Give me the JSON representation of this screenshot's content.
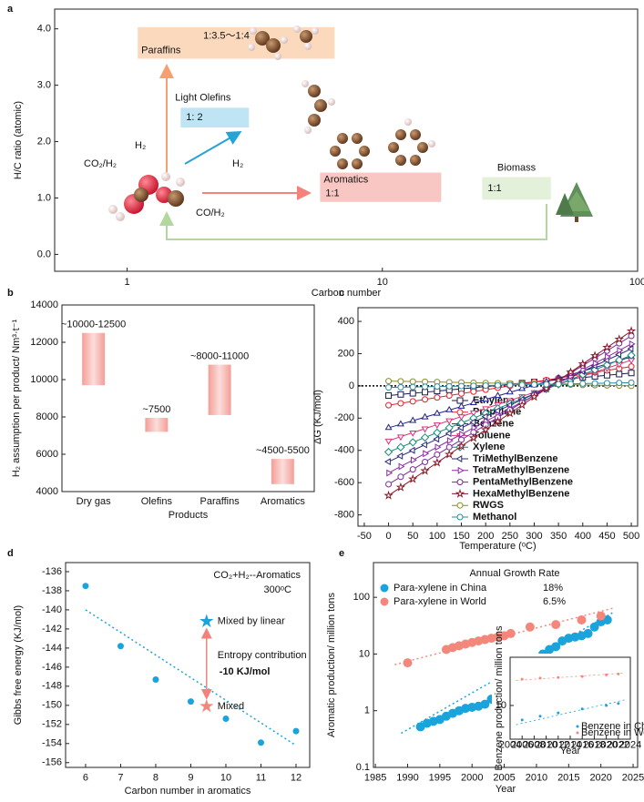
{
  "chart_data": [
    {
      "panel": "a",
      "type": "region",
      "xlabel": "Carbon number",
      "ylabel": "H/C ratio (atomic)",
      "xscale": "log",
      "xlim": [
        0.52,
        100
      ],
      "xticks": [
        1,
        10,
        100
      ],
      "ylim": [
        -0.3,
        4.35
      ],
      "yticks": [
        {
          "value": 0,
          "label": "0.0"
        },
        {
          "value": 1,
          "label": "1.0"
        },
        {
          "value": 2,
          "label": "2.0"
        },
        {
          "value": 3,
          "label": "3.0"
        },
        {
          "value": 4,
          "label": "4.0"
        }
      ],
      "regions": [
        {
          "name": "Paraffins",
          "ratio": "1:3.5～1:4",
          "x": [
            1.1,
            6.5
          ],
          "y": [
            3.47,
            4.03
          ],
          "color": "#fbd9bd",
          "text_color": "#f09a5e"
        },
        {
          "name": "Light Olefins",
          "ratio": "1: 2",
          "x": [
            1.62,
            3.0
          ],
          "y": [
            2.25,
            2.6
          ],
          "color": "#bfe5f5",
          "text_color": "#27a3d6"
        },
        {
          "name": "Aromatics",
          "ratio": "1:1",
          "x": [
            5.7,
            17
          ],
          "y": [
            0.93,
            1.45
          ],
          "color": "#f9c7c3",
          "text_color": "#f07f78"
        },
        {
          "name": "Biomass",
          "ratio": "1:1",
          "x": [
            24.6,
            45.7
          ],
          "y": [
            0.97,
            1.37
          ],
          "color": "#e3f0da",
          "text_color": "#b3d79f"
        }
      ],
      "annotations": [
        "CO₂/H₂",
        "H₂",
        "H₂",
        "CO/H₂"
      ]
    },
    {
      "panel": "b",
      "type": "floating-bar",
      "xlabel": "Products",
      "ylabel": "H₂ assumption per product/ Nm³·t⁻¹",
      "categories": [
        "Dry gas",
        "Olefins",
        "Paraffins",
        "Aromatics"
      ],
      "values": [
        [
          9700,
          12500
        ],
        [
          7200,
          7950
        ],
        [
          8100,
          10800
        ],
        [
          4400,
          5750
        ]
      ],
      "value_labels": [
        "~10000-12500",
        "~7500",
        "~8000-11000",
        "~4500-5500"
      ],
      "color": "#f49e97",
      "ylim": [
        4000,
        14000
      ],
      "yticks": [
        4000,
        6000,
        8000,
        10000,
        12000,
        14000
      ]
    },
    {
      "panel": "c",
      "type": "line",
      "xlabel": "Temperature (ᵒC)",
      "ylabel": "ΔG (KJ/mol)",
      "xlim": [
        -63,
        513
      ],
      "xticks": [
        -50,
        0,
        50,
        100,
        150,
        200,
        250,
        300,
        350,
        400,
        450,
        500
      ],
      "ylim": [
        -870,
        485
      ],
      "yticks": [
        -800,
        -600,
        -400,
        -200,
        0,
        200,
        400
      ],
      "hline": 0,
      "x": [
        0,
        25,
        50,
        75,
        100,
        125,
        150,
        175,
        200,
        225,
        250,
        275,
        300,
        325,
        350,
        375,
        400,
        425,
        450,
        475,
        500
      ],
      "series": [
        {
          "name": "Ethylene",
          "color": "#1b1b4d",
          "marker": "square",
          "values": [
            -60,
            -53,
            -46,
            -39,
            -32,
            -25,
            -18,
            -11,
            -4,
            3,
            10,
            17,
            24,
            31,
            38,
            45,
            52,
            59,
            66,
            73,
            80
          ]
        },
        {
          "name": "Propylene",
          "color": "#e8202a",
          "marker": "circle",
          "values": [
            -120,
            -108,
            -96,
            -84,
            -72,
            -60,
            -48,
            -36,
            -24,
            -12,
            0,
            12,
            24,
            36,
            48,
            60,
            72,
            84,
            96,
            108,
            120
          ]
        },
        {
          "name": "Benzene",
          "color": "#20208f",
          "marker": "triangle-up",
          "values": [
            -260,
            -238,
            -216,
            -194,
            -172,
            -150,
            -128,
            -106,
            -84,
            -62,
            -40,
            -18,
            4,
            26,
            48,
            70,
            92,
            114,
            136,
            158,
            180
          ]
        },
        {
          "name": "Toluene",
          "color": "#e0307a",
          "marker": "triangle-down",
          "values": [
            -340,
            -315,
            -290,
            -265,
            -240,
            -215,
            -190,
            -165,
            -140,
            -115,
            -90,
            -65,
            -40,
            -15,
            10,
            35,
            60,
            85,
            110,
            135,
            160
          ]
        },
        {
          "name": "Xylene",
          "color": "#178a78",
          "marker": "diamond",
          "values": [
            -410,
            -380,
            -350,
            -320,
            -290,
            -260,
            -230,
            -200,
            -170,
            -140,
            -110,
            -80,
            -50,
            -20,
            10,
            40,
            70,
            100,
            130,
            160,
            190
          ]
        },
        {
          "name": "TriMethylBenzene",
          "color": "#2a2a78",
          "marker": "triangle-left",
          "values": [
            -470,
            -435,
            -400,
            -365,
            -330,
            -295,
            -260,
            -225,
            -190,
            -155,
            -120,
            -85,
            -50,
            -15,
            20,
            55,
            90,
            125,
            160,
            195,
            230
          ]
        },
        {
          "name": "TetraMethylBenzene",
          "color": "#8a2aa0",
          "marker": "triangle-right",
          "values": [
            -540,
            -500,
            -460,
            -420,
            -380,
            -340,
            -300,
            -260,
            -220,
            -180,
            -140,
            -100,
            -60,
            -20,
            20,
            60,
            100,
            140,
            180,
            220,
            260
          ]
        },
        {
          "name": "PentaMethylBenzene",
          "color": "#7a2a9a",
          "marker": "circle",
          "values": [
            -610,
            -564,
            -518,
            -472,
            -426,
            -380,
            -334,
            -288,
            -242,
            -196,
            -150,
            -104,
            -58,
            -12,
            34,
            80,
            126,
            172,
            218,
            264,
            310
          ]
        },
        {
          "name": "HexaMethylBenzene",
          "color": "#8a1a2a",
          "marker": "star",
          "values": [
            -680,
            -629,
            -578,
            -527,
            -476,
            -425,
            -374,
            -323,
            -272,
            -221,
            -170,
            -119,
            -68,
            -17,
            34,
            85,
            136,
            187,
            238,
            289,
            340
          ]
        },
        {
          "name": "RWGS",
          "color": "#8a8a2a",
          "marker": "circle",
          "values": [
            30,
            28.5,
            27,
            25.5,
            24,
            22.5,
            21,
            19.5,
            18,
            16.5,
            15,
            13.5,
            12,
            10.5,
            9,
            7.5,
            6,
            4.5,
            3,
            1.5,
            0
          ]
        },
        {
          "name": "Methanol",
          "color": "#2a8a9a",
          "marker": "circle",
          "values": [
            -10,
            -8.5,
            -7,
            -5.5,
            -4,
            -2.5,
            -1,
            0.5,
            2,
            3.5,
            5,
            6.5,
            8,
            9.5,
            11,
            12.5,
            14,
            15.5,
            17,
            18.5,
            20
          ]
        }
      ]
    },
    {
      "panel": "d",
      "type": "scatter",
      "title": "CO₂+H₂--Aromatics",
      "subtitle": "300ᵒC",
      "xlabel": "Carbon number in aromatics",
      "ylabel": "Gibbs free energy (KJ/mol)",
      "x": [
        6,
        7,
        8,
        9,
        10,
        11,
        12
      ],
      "values": [
        -137.5,
        -143.8,
        -147.3,
        -149.6,
        -151.4,
        -153.9,
        -152.7
      ],
      "color": "#1ba3dc",
      "xlim": [
        5.43,
        12.39
      ],
      "xticks": [
        6,
        7,
        8,
        9,
        10,
        11,
        12
      ],
      "ylim": [
        -156.5,
        -135.05
      ],
      "yticks": [
        -156,
        -154,
        -152,
        -150,
        -148,
        -146,
        -144,
        -142,
        -140,
        -138,
        -136
      ],
      "trend": {
        "x": [
          6,
          12
        ],
        "y": [
          -140,
          -154.2
        ]
      },
      "points": [
        {
          "name": "Mixed by linear",
          "x": 9.45,
          "y": -141.2,
          "color": "#1ba3dc"
        },
        {
          "name": "Mixed",
          "x": 9.45,
          "y": -150.1,
          "color": "#f4877c"
        }
      ],
      "annotations": [
        "Entropy contribution",
        "-10 KJ/mol"
      ]
    },
    {
      "panel": "e",
      "type": "scatter",
      "title": "Annual Growth Rate",
      "xlabel": "Year",
      "ylabel": "Aromatic production/ million tons",
      "yscale": "log",
      "xlim": [
        1984.7,
        2025.7
      ],
      "xticks": [
        1985,
        1990,
        1995,
        2000,
        2005,
        2010,
        2015,
        2020,
        2025
      ],
      "ylim": [
        0.1,
        410
      ],
      "yticks": [
        0.1,
        1,
        10,
        100
      ],
      "series": [
        {
          "name": "Para-xylene in China",
          "growth_rate": "18%",
          "color": "#1ba3dc",
          "x": [
            1992,
            1993,
            1994,
            1995,
            1996,
            1997,
            1998,
            1999,
            2000,
            2001,
            2002,
            2003,
            2004,
            2005,
            2006,
            2007,
            2008,
            2009,
            2010,
            2011,
            2012,
            2013,
            2014,
            2015,
            2016,
            2017,
            2018,
            2019,
            2020,
            2021
          ],
          "values": [
            0.52,
            0.6,
            0.65,
            0.7,
            0.8,
            0.9,
            1.0,
            1.1,
            1.15,
            1.2,
            1.3,
            1.6,
            2.2,
            2.5,
            3.4,
            4.2,
            5.5,
            7,
            8.5,
            10,
            12,
            13.5,
            17,
            19,
            20,
            21,
            23,
            30,
            37,
            40
          ],
          "trend": {
            "x": [
              1989,
              2022
            ],
            "y": [
              0.4,
              55
            ]
          }
        },
        {
          "name": "Para-xylene in World",
          "growth_rate": "6.5%",
          "color": "#f4877c",
          "x": [
            1990,
            1996,
            1997,
            1998,
            1999,
            2000,
            2001,
            2002,
            2003,
            2004,
            2005,
            2006,
            2009,
            2013,
            2017,
            2020
          ],
          "values": [
            7,
            12,
            13,
            14,
            15,
            16,
            17,
            18,
            19,
            20,
            21,
            23,
            30,
            33,
            40,
            47
          ],
          "trend": {
            "x": [
              1988,
              2022
            ],
            "y": [
              6.5,
              65
            ]
          }
        }
      ],
      "inset": {
        "xlabel": "Year",
        "ylabel": "Benzene production/ million tons",
        "yscale": "log",
        "xlim": [
          2004,
          2024
        ],
        "xticks": [
          2004,
          2006,
          2008,
          2010,
          2012,
          2014,
          2016,
          2018,
          2020,
          2022,
          2024
        ],
        "ylim": [
          2,
          100
        ],
        "yticks": [
          10
        ],
        "series": [
          {
            "name": "Benzene in China",
            "color": "#1ba3dc",
            "x": [
              2006,
              2009,
              2012,
              2016,
              2020,
              2022
            ],
            "values": [
              5,
              6,
              7,
              8.5,
              10,
              11
            ],
            "trend": {
              "x": [
                2005,
                2023
              ],
              "y": [
                4,
                13
              ]
            }
          },
          {
            "name": "Benzene in World",
            "color": "#f4877c",
            "x": [
              2006,
              2009,
              2012,
              2016,
              2020,
              2022
            ],
            "values": [
              35,
              37,
              38,
              40,
              43,
              45
            ],
            "trend": {
              "x": [
                2005,
                2023
              ],
              "y": [
                33,
                47
              ]
            }
          }
        ]
      }
    }
  ]
}
